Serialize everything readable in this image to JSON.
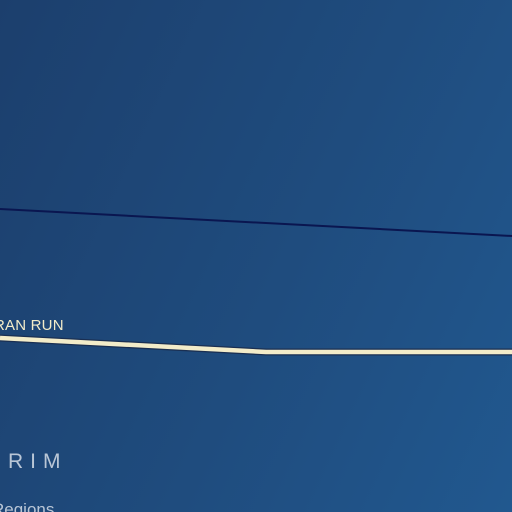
{
  "map": {
    "colors": {
      "water_bg": "#1f4a7b",
      "boundary_line": "#0a1650",
      "route_line": "#f3ecc9",
      "route_casing": "#1a2f52",
      "region_text": "#b9c6d6"
    },
    "features": {
      "route_label": "RAN RUN",
      "region_label": "RIM",
      "legend_text": "Regions"
    }
  }
}
